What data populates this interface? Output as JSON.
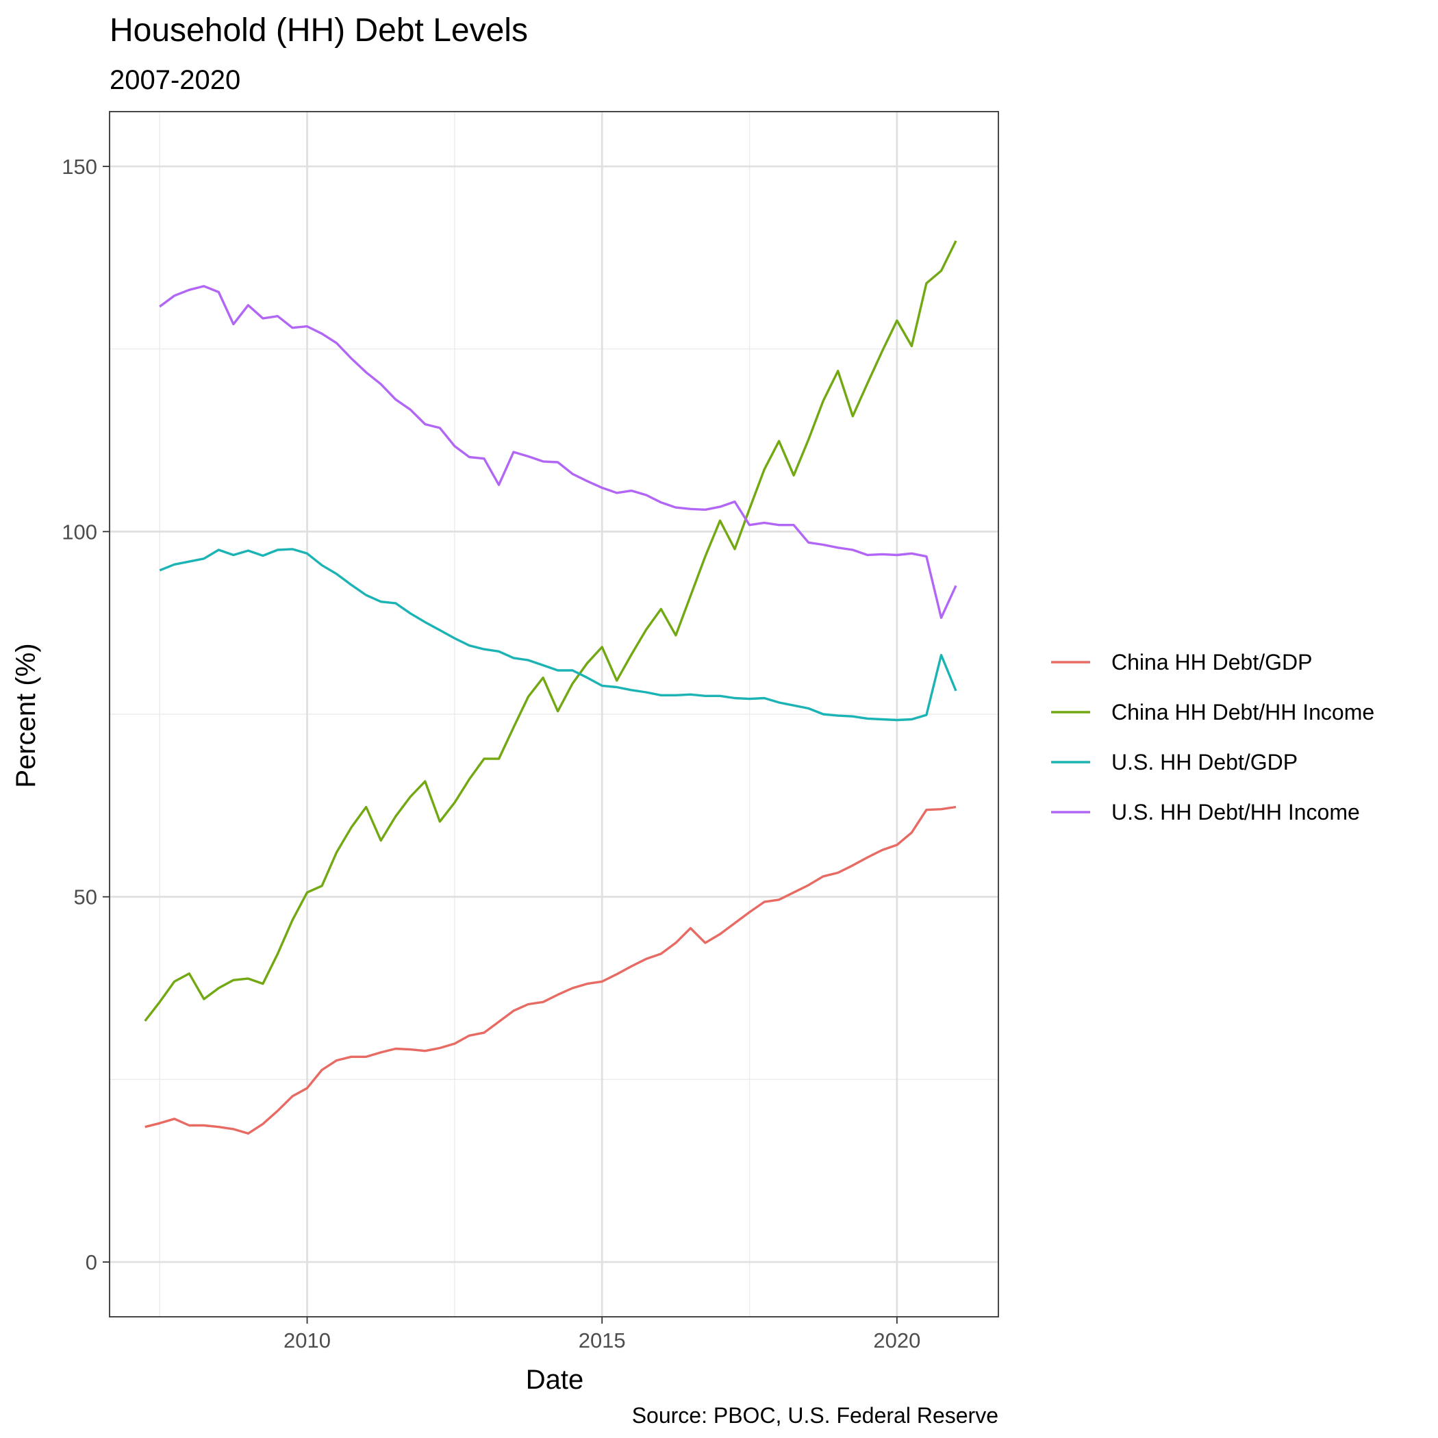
{
  "chart_data": {
    "type": "line",
    "title": "Household (HH) Debt Levels",
    "subtitle": "2007-2020",
    "xlabel": "Date",
    "ylabel": "Percent (%)",
    "caption": "Source: PBOC, U.S. Federal Reserve",
    "xlim": [
      2006.65,
      2021.72
    ],
    "ylim": [
      -7.5,
      157.5
    ],
    "x_ticks": [
      2010,
      2015,
      2020
    ],
    "x_tick_labels": [
      "2010",
      "2015",
      "2020"
    ],
    "x_minor_ticks": [
      2007.5,
      2012.5,
      2017.5
    ],
    "y_ticks": [
      0,
      50,
      100,
      150
    ],
    "y_tick_labels": [
      "0",
      "50",
      "100",
      "150"
    ],
    "y_minor_ticks": [
      25,
      75,
      125
    ],
    "grid": true,
    "legend_position": "right",
    "series": [
      {
        "name": "China HH Debt/GDP",
        "color": "#E76A63",
        "x": [
          2007.25,
          2007.5,
          2007.75,
          2008.0,
          2008.25,
          2008.5,
          2008.75,
          2009.0,
          2009.25,
          2009.5,
          2009.75,
          2010.0,
          2010.25,
          2010.5,
          2010.75,
          2011.0,
          2011.25,
          2011.5,
          2011.75,
          2012.0,
          2012.25,
          2012.5,
          2012.75,
          2013.0,
          2013.25,
          2013.5,
          2013.75,
          2014.0,
          2014.25,
          2014.5,
          2014.75,
          2015.0,
          2015.25,
          2015.5,
          2015.75,
          2016.0,
          2016.25,
          2016.5,
          2016.75,
          2017.0,
          2017.25,
          2017.5,
          2017.75,
          2018.0,
          2018.25,
          2018.5,
          2018.75,
          2019.0,
          2019.25,
          2019.5,
          2019.75,
          2020.0,
          2020.25,
          2020.5,
          2020.75,
          2021.0
        ],
        "values": [
          18.5,
          19.0,
          19.6,
          18.7,
          18.7,
          18.5,
          18.2,
          17.6,
          18.9,
          20.7,
          22.7,
          23.8,
          26.3,
          27.6,
          28.1,
          28.1,
          28.7,
          29.2,
          29.1,
          28.9,
          29.3,
          29.9,
          31.0,
          31.4,
          32.9,
          34.4,
          35.3,
          35.6,
          36.6,
          37.5,
          38.1,
          38.4,
          39.4,
          40.5,
          41.5,
          42.2,
          43.7,
          45.7,
          43.7,
          44.9,
          46.4,
          47.9,
          49.3,
          49.6,
          50.6,
          51.6,
          52.8,
          53.3,
          54.3,
          55.4,
          56.4,
          57.1,
          58.8,
          61.9,
          62.0,
          62.3
        ]
      },
      {
        "name": "China HH Debt/HH Income",
        "color": "#72A812",
        "x": [
          2007.25,
          2007.5,
          2007.75,
          2008.0,
          2008.25,
          2008.5,
          2008.75,
          2009.0,
          2009.25,
          2009.5,
          2009.75,
          2010.0,
          2010.25,
          2010.5,
          2010.75,
          2011.0,
          2011.25,
          2011.5,
          2011.75,
          2012.0,
          2012.25,
          2012.5,
          2012.75,
          2013.0,
          2013.25,
          2013.5,
          2013.75,
          2014.0,
          2014.25,
          2014.5,
          2014.75,
          2015.0,
          2015.25,
          2015.5,
          2015.75,
          2016.0,
          2016.25,
          2016.5,
          2016.75,
          2017.0,
          2017.25,
          2017.5,
          2017.75,
          2018.0,
          2018.25,
          2018.5,
          2018.75,
          2019.0,
          2019.25,
          2019.5,
          2019.75,
          2020.0,
          2020.25,
          2020.5,
          2020.75,
          2021.0
        ],
        "values": [
          33.0,
          35.6,
          38.4,
          39.5,
          36.0,
          37.5,
          38.6,
          38.8,
          38.1,
          42.2,
          46.8,
          50.6,
          51.5,
          56.1,
          59.5,
          62.3,
          57.7,
          61.0,
          63.7,
          65.8,
          60.3,
          62.9,
          66.1,
          68.9,
          68.9,
          73.2,
          77.4,
          80.0,
          75.4,
          79.2,
          82.0,
          84.2,
          79.6,
          83.2,
          86.6,
          89.4,
          85.8,
          91.2,
          96.6,
          101.5,
          97.6,
          103.1,
          108.5,
          112.4,
          107.7,
          112.6,
          117.9,
          122.0,
          115.8,
          120.3,
          124.7,
          128.9,
          125.4,
          134.0,
          135.7,
          139.8
        ]
      },
      {
        "name": "U.S. HH Debt/GDP",
        "color": "#1CB3B5",
        "x": [
          2007.5,
          2007.75,
          2008.0,
          2008.25,
          2008.5,
          2008.75,
          2009.0,
          2009.25,
          2009.5,
          2009.75,
          2010.0,
          2010.25,
          2010.5,
          2010.75,
          2011.0,
          2011.25,
          2011.5,
          2011.75,
          2012.0,
          2012.25,
          2012.5,
          2012.75,
          2013.0,
          2013.25,
          2013.5,
          2013.75,
          2014.0,
          2014.25,
          2014.5,
          2014.75,
          2015.0,
          2015.25,
          2015.5,
          2015.75,
          2016.0,
          2016.25,
          2016.5,
          2016.75,
          2017.0,
          2017.25,
          2017.5,
          2017.75,
          2018.0,
          2018.25,
          2018.5,
          2018.75,
          2019.0,
          2019.25,
          2019.5,
          2019.75,
          2020.0,
          2020.25,
          2020.5,
          2020.75,
          2021.0
        ],
        "values": [
          94.7,
          95.5,
          95.9,
          96.3,
          97.5,
          96.8,
          97.4,
          96.7,
          97.5,
          97.6,
          97.0,
          95.4,
          94.2,
          92.7,
          91.3,
          90.4,
          90.2,
          88.8,
          87.6,
          86.5,
          85.4,
          84.4,
          83.9,
          83.6,
          82.7,
          82.4,
          81.7,
          81.0,
          81.0,
          80.0,
          78.9,
          78.7,
          78.3,
          78.0,
          77.6,
          77.6,
          77.7,
          77.5,
          77.5,
          77.2,
          77.1,
          77.2,
          76.6,
          76.2,
          75.8,
          75.0,
          74.8,
          74.7,
          74.4,
          74.3,
          74.2,
          74.3,
          74.9,
          83.1,
          78.2
        ]
      },
      {
        "name": "U.S. HH Debt/HH Income",
        "color": "#B266F5",
        "x": [
          2007.5,
          2007.75,
          2008.0,
          2008.25,
          2008.5,
          2008.75,
          2009.0,
          2009.25,
          2009.5,
          2009.75,
          2010.0,
          2010.25,
          2010.5,
          2010.75,
          2011.0,
          2011.25,
          2011.5,
          2011.75,
          2012.0,
          2012.25,
          2012.5,
          2012.75,
          2013.0,
          2013.25,
          2013.5,
          2013.75,
          2014.0,
          2014.25,
          2014.5,
          2014.75,
          2015.0,
          2015.25,
          2015.5,
          2015.75,
          2016.0,
          2016.25,
          2016.5,
          2016.75,
          2017.0,
          2017.25,
          2017.5,
          2017.75,
          2018.0,
          2018.25,
          2018.5,
          2018.75,
          2019.0,
          2019.25,
          2019.5,
          2019.75,
          2020.0,
          2020.25,
          2020.5,
          2020.75,
          2021.0
        ],
        "values": [
          130.8,
          132.3,
          133.1,
          133.6,
          132.8,
          128.4,
          131.0,
          129.2,
          129.5,
          127.9,
          128.1,
          127.1,
          125.8,
          123.7,
          121.8,
          120.2,
          118.1,
          116.7,
          114.7,
          114.2,
          111.7,
          110.2,
          110.0,
          106.4,
          110.9,
          110.3,
          109.6,
          109.5,
          107.9,
          106.9,
          106.0,
          105.3,
          105.6,
          105.0,
          104.0,
          103.3,
          103.1,
          103.0,
          103.4,
          104.1,
          100.9,
          101.2,
          100.9,
          100.9,
          98.5,
          98.2,
          97.8,
          97.5,
          96.8,
          96.9,
          96.8,
          97.0,
          96.6,
          88.2,
          92.6
        ]
      }
    ]
  }
}
